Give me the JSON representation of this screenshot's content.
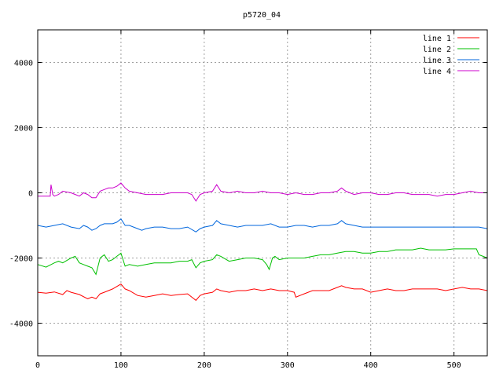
{
  "chart_data": {
    "type": "line",
    "title": "p5720_04",
    "xlabel": "",
    "ylabel": "",
    "xlim": [
      0,
      540
    ],
    "ylim": [
      -5000,
      5000
    ],
    "xticks": [
      0,
      100,
      200,
      300,
      400,
      500
    ],
    "yticks": [
      -4000,
      -2000,
      0,
      2000,
      4000
    ],
    "grid": true,
    "legend_position": "top-right",
    "series": [
      {
        "name": "line 1",
        "color": "#ff0000",
        "points": [
          [
            0,
            -3050
          ],
          [
            10,
            -3080
          ],
          [
            20,
            -3040
          ],
          [
            30,
            -3120
          ],
          [
            35,
            -3000
          ],
          [
            40,
            -3050
          ],
          [
            50,
            -3120
          ],
          [
            60,
            -3250
          ],
          [
            65,
            -3200
          ],
          [
            70,
            -3250
          ],
          [
            75,
            -3100
          ],
          [
            80,
            -3050
          ],
          [
            90,
            -2950
          ],
          [
            100,
            -2800
          ],
          [
            105,
            -2950
          ],
          [
            110,
            -3000
          ],
          [
            120,
            -3150
          ],
          [
            130,
            -3200
          ],
          [
            140,
            -3150
          ],
          [
            150,
            -3100
          ],
          [
            160,
            -3150
          ],
          [
            170,
            -3120
          ],
          [
            180,
            -3100
          ],
          [
            190,
            -3300
          ],
          [
            195,
            -3150
          ],
          [
            200,
            -3100
          ],
          [
            210,
            -3050
          ],
          [
            215,
            -2950
          ],
          [
            220,
            -3000
          ],
          [
            230,
            -3050
          ],
          [
            240,
            -3000
          ],
          [
            250,
            -3000
          ],
          [
            260,
            -2950
          ],
          [
            270,
            -3000
          ],
          [
            280,
            -2950
          ],
          [
            290,
            -3000
          ],
          [
            300,
            -3000
          ],
          [
            308,
            -3050
          ],
          [
            310,
            -3200
          ],
          [
            320,
            -3100
          ],
          [
            330,
            -3000
          ],
          [
            340,
            -3000
          ],
          [
            350,
            -3000
          ],
          [
            360,
            -2900
          ],
          [
            365,
            -2850
          ],
          [
            370,
            -2900
          ],
          [
            380,
            -2950
          ],
          [
            390,
            -2950
          ],
          [
            400,
            -3050
          ],
          [
            410,
            -3000
          ],
          [
            420,
            -2950
          ],
          [
            430,
            -3000
          ],
          [
            440,
            -3000
          ],
          [
            450,
            -2950
          ],
          [
            460,
            -2950
          ],
          [
            470,
            -2950
          ],
          [
            480,
            -2950
          ],
          [
            490,
            -3000
          ],
          [
            500,
            -2950
          ],
          [
            510,
            -2900
          ],
          [
            520,
            -2950
          ],
          [
            530,
            -2950
          ],
          [
            540,
            -3000
          ]
        ]
      },
      {
        "name": "line 2",
        "color": "#00c000",
        "points": [
          [
            0,
            -2200
          ],
          [
            10,
            -2280
          ],
          [
            20,
            -2150
          ],
          [
            25,
            -2100
          ],
          [
            30,
            -2150
          ],
          [
            40,
            -2000
          ],
          [
            45,
            -1950
          ],
          [
            50,
            -2150
          ],
          [
            55,
            -2200
          ],
          [
            60,
            -2250
          ],
          [
            65,
            -2300
          ],
          [
            70,
            -2500
          ],
          [
            75,
            -2000
          ],
          [
            80,
            -1900
          ],
          [
            85,
            -2100
          ],
          [
            90,
            -2050
          ],
          [
            95,
            -1950
          ],
          [
            100,
            -1850
          ],
          [
            105,
            -2250
          ],
          [
            110,
            -2200
          ],
          [
            120,
            -2250
          ],
          [
            130,
            -2200
          ],
          [
            140,
            -2150
          ],
          [
            150,
            -2150
          ],
          [
            160,
            -2150
          ],
          [
            170,
            -2100
          ],
          [
            180,
            -2100
          ],
          [
            185,
            -2050
          ],
          [
            190,
            -2300
          ],
          [
            195,
            -2150
          ],
          [
            200,
            -2100
          ],
          [
            210,
            -2050
          ],
          [
            215,
            -1900
          ],
          [
            220,
            -1950
          ],
          [
            230,
            -2100
          ],
          [
            240,
            -2050
          ],
          [
            250,
            -2000
          ],
          [
            260,
            -2000
          ],
          [
            270,
            -2050
          ],
          [
            275,
            -2200
          ],
          [
            278,
            -2350
          ],
          [
            282,
            -2000
          ],
          [
            285,
            -1950
          ],
          [
            290,
            -2050
          ],
          [
            300,
            -2000
          ],
          [
            310,
            -2000
          ],
          [
            320,
            -2000
          ],
          [
            330,
            -1950
          ],
          [
            340,
            -1900
          ],
          [
            350,
            -1900
          ],
          [
            360,
            -1850
          ],
          [
            370,
            -1800
          ],
          [
            380,
            -1800
          ],
          [
            390,
            -1850
          ],
          [
            400,
            -1850
          ],
          [
            410,
            -1800
          ],
          [
            420,
            -1800
          ],
          [
            430,
            -1750
          ],
          [
            440,
            -1750
          ],
          [
            450,
            -1750
          ],
          [
            460,
            -1700
          ],
          [
            470,
            -1750
          ],
          [
            480,
            -1750
          ],
          [
            490,
            -1750
          ],
          [
            500,
            -1720
          ],
          [
            510,
            -1720
          ],
          [
            520,
            -1720
          ],
          [
            527,
            -1720
          ],
          [
            530,
            -1900
          ],
          [
            535,
            -1950
          ],
          [
            540,
            -2000
          ]
        ]
      },
      {
        "name": "line 3",
        "color": "#0066dd",
        "points": [
          [
            0,
            -1000
          ],
          [
            10,
            -1050
          ],
          [
            20,
            -1000
          ],
          [
            30,
            -950
          ],
          [
            40,
            -1050
          ],
          [
            50,
            -1100
          ],
          [
            55,
            -1000
          ],
          [
            60,
            -1050
          ],
          [
            65,
            -1150
          ],
          [
            70,
            -1100
          ],
          [
            75,
            -1000
          ],
          [
            80,
            -950
          ],
          [
            90,
            -950
          ],
          [
            95,
            -900
          ],
          [
            100,
            -800
          ],
          [
            105,
            -1000
          ],
          [
            110,
            -1000
          ],
          [
            120,
            -1100
          ],
          [
            125,
            -1150
          ],
          [
            130,
            -1100
          ],
          [
            140,
            -1050
          ],
          [
            150,
            -1050
          ],
          [
            160,
            -1100
          ],
          [
            170,
            -1100
          ],
          [
            180,
            -1050
          ],
          [
            190,
            -1200
          ],
          [
            195,
            -1100
          ],
          [
            200,
            -1050
          ],
          [
            210,
            -1000
          ],
          [
            215,
            -850
          ],
          [
            220,
            -950
          ],
          [
            230,
            -1000
          ],
          [
            240,
            -1050
          ],
          [
            250,
            -1000
          ],
          [
            260,
            -1000
          ],
          [
            270,
            -1000
          ],
          [
            280,
            -950
          ],
          [
            290,
            -1050
          ],
          [
            300,
            -1050
          ],
          [
            310,
            -1000
          ],
          [
            320,
            -1000
          ],
          [
            330,
            -1050
          ],
          [
            340,
            -1000
          ],
          [
            350,
            -1000
          ],
          [
            360,
            -950
          ],
          [
            365,
            -850
          ],
          [
            370,
            -950
          ],
          [
            380,
            -1000
          ],
          [
            390,
            -1050
          ],
          [
            400,
            -1050
          ],
          [
            410,
            -1050
          ],
          [
            420,
            -1050
          ],
          [
            430,
            -1050
          ],
          [
            440,
            -1050
          ],
          [
            450,
            -1050
          ],
          [
            460,
            -1050
          ],
          [
            470,
            -1050
          ],
          [
            480,
            -1050
          ],
          [
            490,
            -1050
          ],
          [
            500,
            -1050
          ],
          [
            510,
            -1050
          ],
          [
            520,
            -1050
          ],
          [
            530,
            -1050
          ],
          [
            540,
            -1100
          ]
        ]
      },
      {
        "name": "line 4",
        "color": "#cc00cc",
        "points": [
          [
            0,
            -100
          ],
          [
            10,
            -100
          ],
          [
            15,
            -100
          ],
          [
            16,
            250
          ],
          [
            18,
            -50
          ],
          [
            20,
            -100
          ],
          [
            25,
            -50
          ],
          [
            30,
            50
          ],
          [
            40,
            0
          ],
          [
            45,
            -50
          ],
          [
            50,
            -100
          ],
          [
            55,
            0
          ],
          [
            60,
            -50
          ],
          [
            65,
            -150
          ],
          [
            70,
            -150
          ],
          [
            75,
            50
          ],
          [
            80,
            100
          ],
          [
            85,
            150
          ],
          [
            90,
            150
          ],
          [
            95,
            200
          ],
          [
            100,
            300
          ],
          [
            105,
            150
          ],
          [
            110,
            50
          ],
          [
            120,
            0
          ],
          [
            130,
            -50
          ],
          [
            140,
            -50
          ],
          [
            150,
            -50
          ],
          [
            160,
            0
          ],
          [
            170,
            0
          ],
          [
            180,
            0
          ],
          [
            185,
            -50
          ],
          [
            190,
            -250
          ],
          [
            195,
            -50
          ],
          [
            200,
            0
          ],
          [
            210,
            50
          ],
          [
            215,
            250
          ],
          [
            220,
            50
          ],
          [
            230,
            0
          ],
          [
            240,
            50
          ],
          [
            250,
            0
          ],
          [
            260,
            0
          ],
          [
            270,
            50
          ],
          [
            280,
            0
          ],
          [
            290,
            0
          ],
          [
            300,
            -50
          ],
          [
            310,
            0
          ],
          [
            320,
            -50
          ],
          [
            330,
            -50
          ],
          [
            340,
            0
          ],
          [
            350,
            0
          ],
          [
            360,
            50
          ],
          [
            365,
            150
          ],
          [
            370,
            50
          ],
          [
            380,
            -50
          ],
          [
            390,
            0
          ],
          [
            400,
            0
          ],
          [
            410,
            -50
          ],
          [
            420,
            -50
          ],
          [
            430,
            0
          ],
          [
            440,
            0
          ],
          [
            450,
            -50
          ],
          [
            460,
            -50
          ],
          [
            470,
            -50
          ],
          [
            480,
            -100
          ],
          [
            490,
            -50
          ],
          [
            500,
            -50
          ],
          [
            510,
            0
          ],
          [
            520,
            50
          ],
          [
            530,
            0
          ],
          [
            540,
            0
          ]
        ]
      }
    ]
  }
}
